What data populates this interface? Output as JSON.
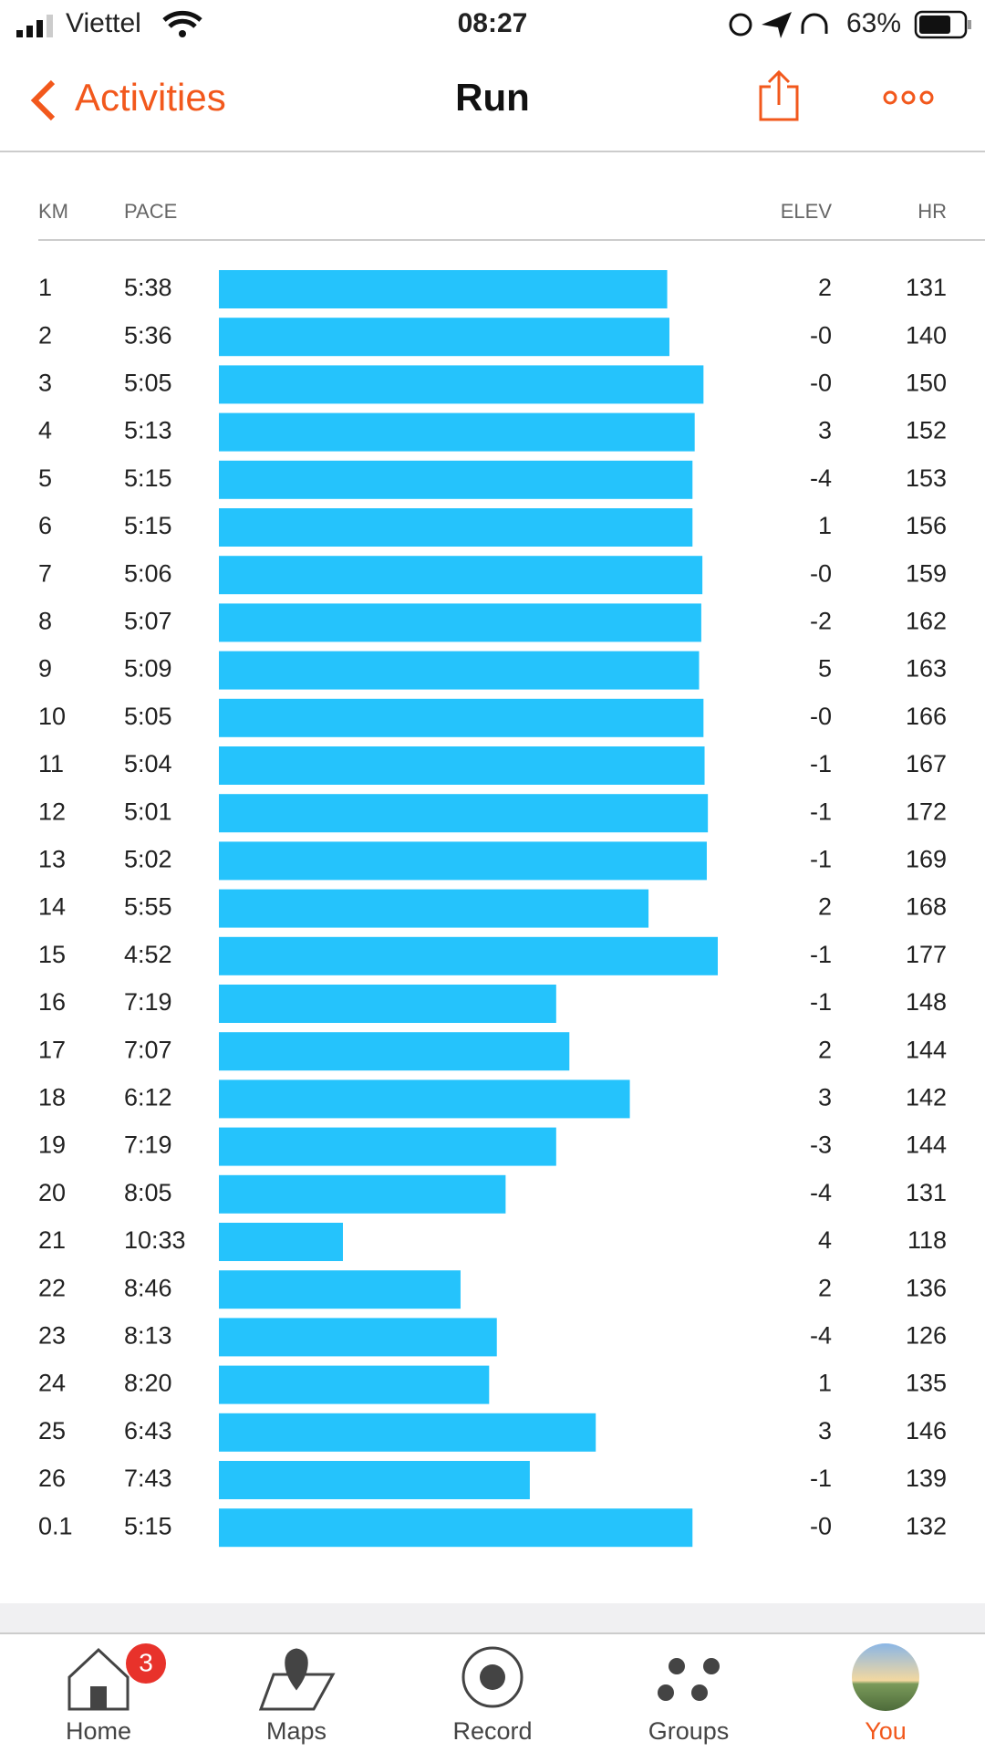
{
  "status_bar": {
    "carrier": "Viettel",
    "time": "08:27",
    "battery": "63%"
  },
  "nav": {
    "back": "Activities",
    "title": "Run"
  },
  "splits": {
    "columns": {
      "km": "KM",
      "pace": "PACE",
      "elev": "ELEV",
      "hr": "HR"
    },
    "rows": [
      {
        "km": "1",
        "pace": "5:38",
        "elev": "2",
        "hr": "131"
      },
      {
        "km": "2",
        "pace": "5:36",
        "elev": "-0",
        "hr": "140"
      },
      {
        "km": "3",
        "pace": "5:05",
        "elev": "-0",
        "hr": "150"
      },
      {
        "km": "4",
        "pace": "5:13",
        "elev": "3",
        "hr": "152"
      },
      {
        "km": "5",
        "pace": "5:15",
        "elev": "-4",
        "hr": "153"
      },
      {
        "km": "6",
        "pace": "5:15",
        "elev": "1",
        "hr": "156"
      },
      {
        "km": "7",
        "pace": "5:06",
        "elev": "-0",
        "hr": "159"
      },
      {
        "km": "8",
        "pace": "5:07",
        "elev": "-2",
        "hr": "162"
      },
      {
        "km": "9",
        "pace": "5:09",
        "elev": "5",
        "hr": "163"
      },
      {
        "km": "10",
        "pace": "5:05",
        "elev": "-0",
        "hr": "166"
      },
      {
        "km": "11",
        "pace": "5:04",
        "elev": "-1",
        "hr": "167"
      },
      {
        "km": "12",
        "pace": "5:01",
        "elev": "-1",
        "hr": "172"
      },
      {
        "km": "13",
        "pace": "5:02",
        "elev": "-1",
        "hr": "169"
      },
      {
        "km": "14",
        "pace": "5:55",
        "elev": "2",
        "hr": "168"
      },
      {
        "km": "15",
        "pace": "4:52",
        "elev": "-1",
        "hr": "177"
      },
      {
        "km": "16",
        "pace": "7:19",
        "elev": "-1",
        "hr": "148"
      },
      {
        "km": "17",
        "pace": "7:07",
        "elev": "2",
        "hr": "144"
      },
      {
        "km": "18",
        "pace": "6:12",
        "elev": "3",
        "hr": "142"
      },
      {
        "km": "19",
        "pace": "7:19",
        "elev": "-3",
        "hr": "144"
      },
      {
        "km": "20",
        "pace": "8:05",
        "elev": "-4",
        "hr": "131"
      },
      {
        "km": "21",
        "pace": "10:33",
        "elev": "4",
        "hr": "118"
      },
      {
        "km": "22",
        "pace": "8:46",
        "elev": "2",
        "hr": "136"
      },
      {
        "km": "23",
        "pace": "8:13",
        "elev": "-4",
        "hr": "126"
      },
      {
        "km": "24",
        "pace": "8:20",
        "elev": "1",
        "hr": "135"
      },
      {
        "km": "25",
        "pace": "6:43",
        "elev": "3",
        "hr": "146"
      },
      {
        "km": "26",
        "pace": "7:43",
        "elev": "-1",
        "hr": "139"
      },
      {
        "km": "0.1",
        "pace": "5:15",
        "elev": "-0",
        "hr": "132"
      }
    ]
  },
  "tab_bar": {
    "items": [
      {
        "label": "Home",
        "badge": "3"
      },
      {
        "label": "Maps"
      },
      {
        "label": "Record"
      },
      {
        "label": "Groups"
      },
      {
        "label": "You"
      }
    ]
  }
}
